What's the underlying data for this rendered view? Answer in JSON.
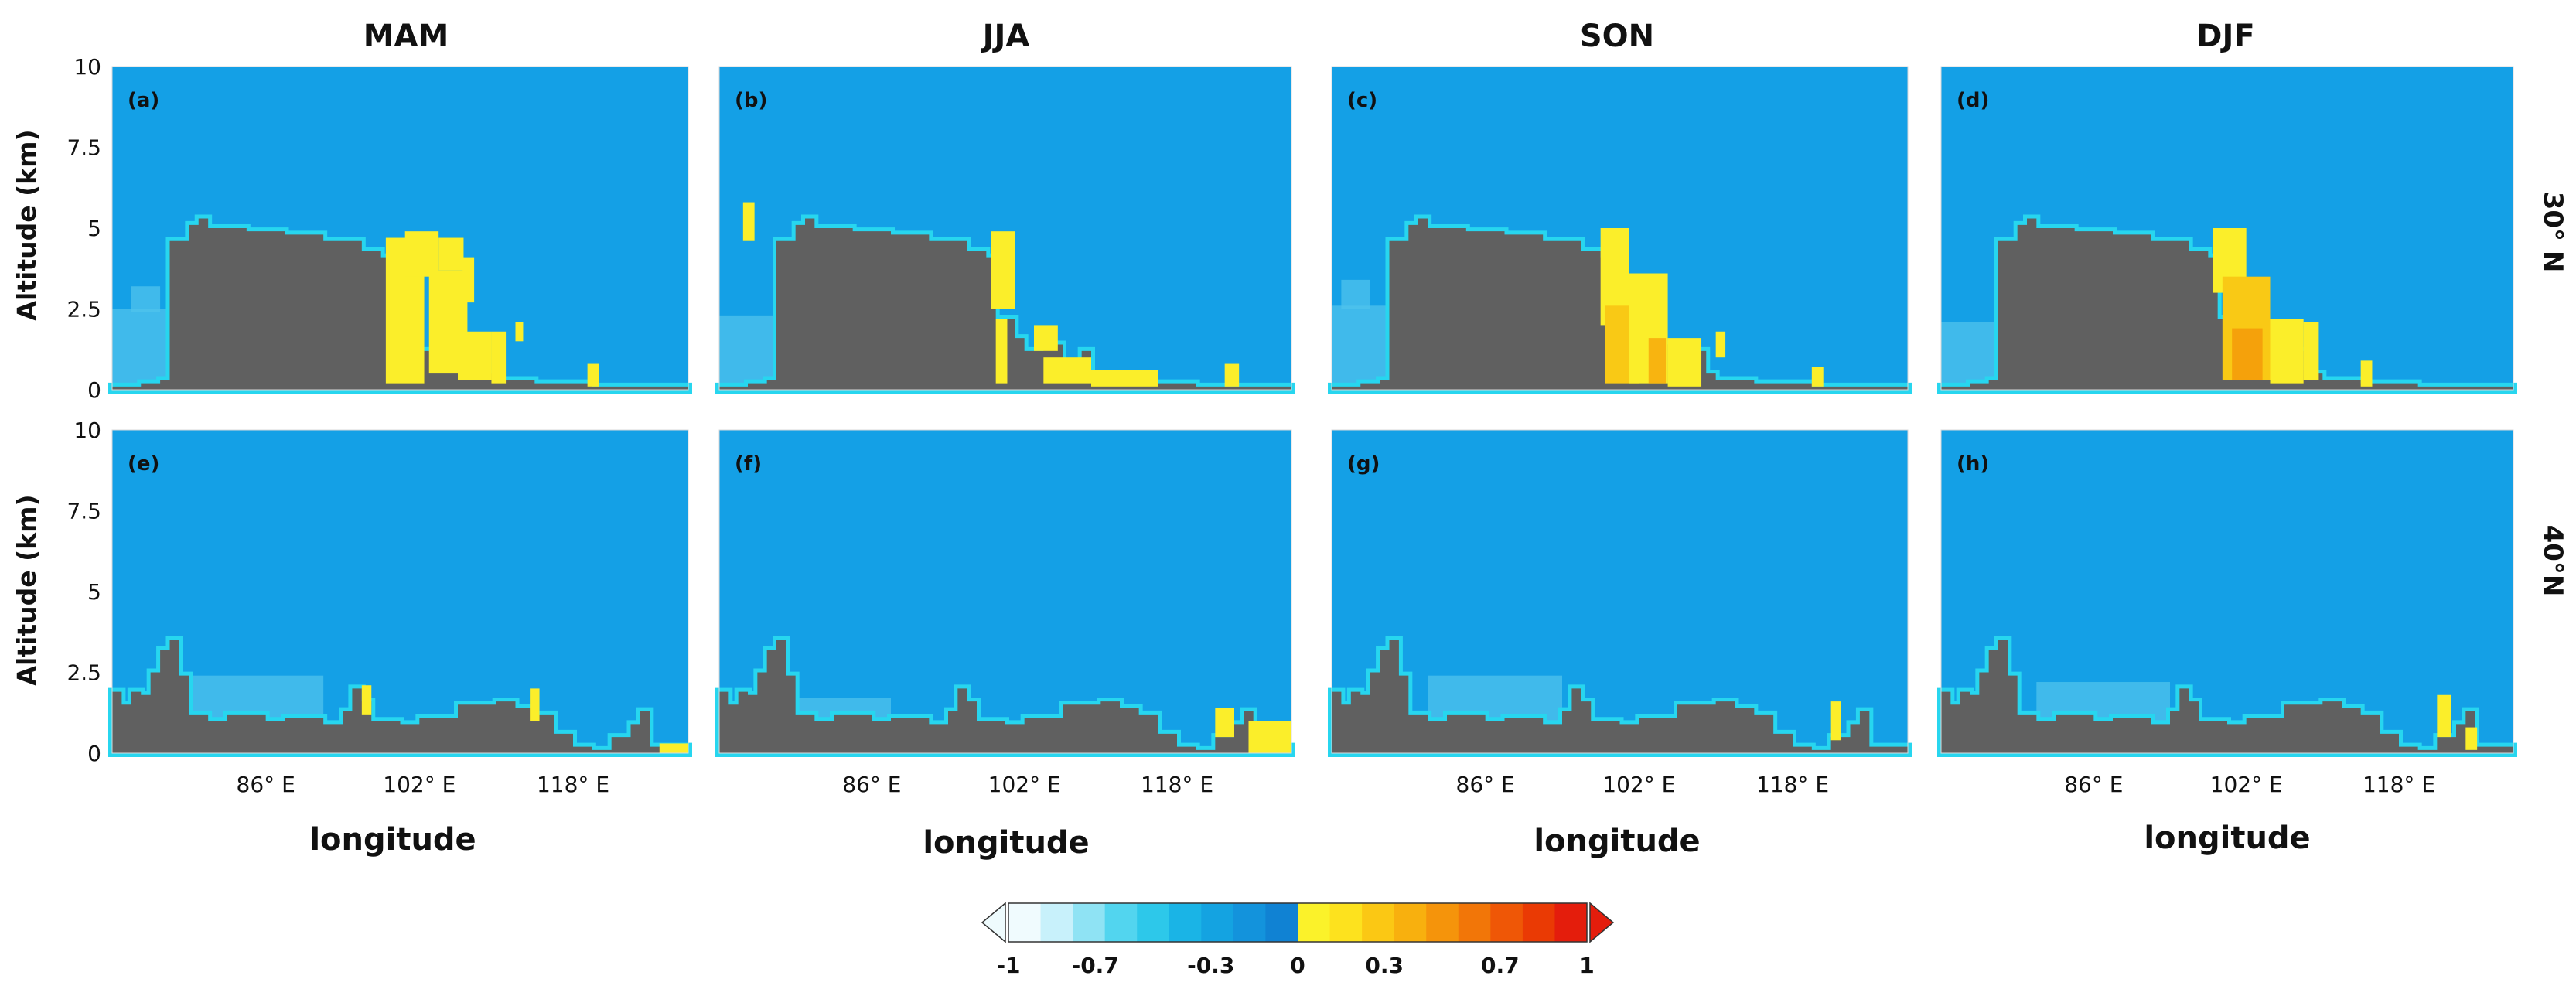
{
  "chart_data": {
    "type": "heatmap",
    "description_units": "correlation coefficient, longitude-altitude cross sections",
    "columns": [
      "MAM",
      "JJA",
      "SON",
      "DJF"
    ],
    "rows": [
      {
        "name": "30° N",
        "label": "30° N"
      },
      {
        "name": "40°N",
        "label": "40°N"
      }
    ],
    "panels": [
      {
        "label": "(a)",
        "season": "MAM",
        "row": 0
      },
      {
        "label": "(b)",
        "season": "JJA",
        "row": 0
      },
      {
        "label": "(c)",
        "season": "SON",
        "row": 0
      },
      {
        "label": "(d)",
        "season": "DJF",
        "row": 0
      },
      {
        "label": "(e)",
        "season": "MAM",
        "row": 1
      },
      {
        "label": "(f)",
        "season": "JJA",
        "row": 1
      },
      {
        "label": "(g)",
        "season": "SON",
        "row": 1
      },
      {
        "label": "(h)",
        "season": "DJF",
        "row": 1
      }
    ],
    "xlabel": "longitude",
    "ylabel": "Altitude (km)",
    "xlim": [
      70,
      130
    ],
    "ylim": [
      0,
      10
    ],
    "xticks": [
      86,
      102,
      118
    ],
    "xtick_labels": [
      "86° E",
      "102° E",
      "118° E"
    ],
    "yticks": [
      0,
      2.5,
      5,
      7.5,
      10
    ],
    "ytick_labels": [
      "0",
      "2.5",
      "5",
      "7.5",
      "10"
    ],
    "terrain_30N": [
      [
        70,
        0.1
      ],
      [
        73,
        0.2
      ],
      [
        75,
        0.3
      ],
      [
        76,
        4.6
      ],
      [
        78,
        5.1
      ],
      [
        79,
        5.3
      ],
      [
        80,
        5.0
      ],
      [
        84,
        4.9
      ],
      [
        88,
        4.8
      ],
      [
        92,
        4.6
      ],
      [
        96,
        4.3
      ],
      [
        98,
        4.1
      ],
      [
        99,
        2.2
      ],
      [
        101,
        1.6
      ],
      [
        102,
        1.2
      ],
      [
        104,
        1.4
      ],
      [
        106,
        0.6
      ],
      [
        108,
        1.2
      ],
      [
        109,
        0.5
      ],
      [
        110,
        0.3
      ],
      [
        114,
        0.2
      ],
      [
        120,
        0.1
      ],
      [
        130,
        0.1
      ]
    ],
    "terrain_40N": [
      [
        70,
        1.9
      ],
      [
        71,
        1.5
      ],
      [
        72,
        1.9
      ],
      [
        73,
        1.8
      ],
      [
        74,
        2.5
      ],
      [
        75,
        3.2
      ],
      [
        76,
        3.5
      ],
      [
        77,
        2.4
      ],
      [
        78,
        1.2
      ],
      [
        80,
        1.0
      ],
      [
        82,
        1.2
      ],
      [
        86,
        1.0
      ],
      [
        88,
        1.1
      ],
      [
        90,
        1.1
      ],
      [
        92,
        0.9
      ],
      [
        94,
        1.3
      ],
      [
        95,
        2.0
      ],
      [
        96,
        1.6
      ],
      [
        97,
        1.0
      ],
      [
        100,
        0.9
      ],
      [
        102,
        1.1
      ],
      [
        104,
        1.1
      ],
      [
        106,
        1.5
      ],
      [
        108,
        1.5
      ],
      [
        110,
        1.6
      ],
      [
        112,
        1.4
      ],
      [
        114,
        1.2
      ],
      [
        116,
        0.6
      ],
      [
        118,
        0.2
      ],
      [
        120,
        0.1
      ],
      [
        122,
        0.5
      ],
      [
        124,
        0.9
      ],
      [
        125,
        1.3
      ],
      [
        126,
        0.2
      ],
      [
        130,
        0.0
      ]
    ],
    "colorbar": {
      "min": -1,
      "max": 1,
      "extend": "both",
      "tick_labels": [
        "-1",
        "-0.7",
        "-0.3",
        "0",
        "0.3",
        "0.7",
        "1"
      ],
      "tick_values": [
        -1,
        -0.7,
        -0.3,
        0,
        0.3,
        0.7,
        1
      ],
      "colors": [
        "#f0fbfe",
        "#c8f1fb",
        "#8fe3f4",
        "#52d5ef",
        "#2dc8ea",
        "#1ab4e6",
        "#14a3e1",
        "#1393dc",
        "#1082d3",
        "#fbf22a",
        "#fde21e",
        "#fbc814",
        "#f8b00e",
        "#f5940b",
        "#f27608",
        "#ef5706",
        "#ea3a04",
        "#e41d0c"
      ],
      "under_color": "#eefbfd",
      "over_color": "#e41d0c"
    },
    "background_color": "#14a0e6",
    "terrain_color": "#606060"
  }
}
